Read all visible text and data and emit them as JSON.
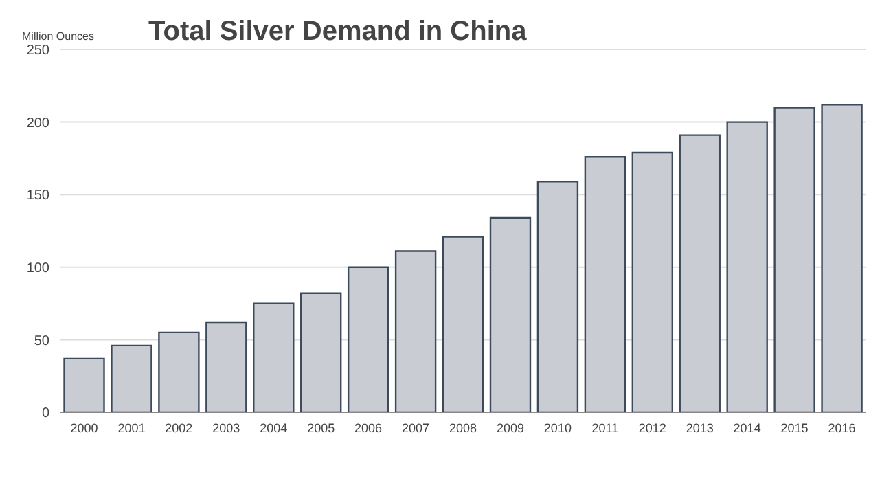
{
  "chart_data": {
    "type": "bar",
    "title": "Total Silver Demand in China",
    "ylabel": "Million Ounces",
    "categories": [
      "2000",
      "2001",
      "2002",
      "2003",
      "2004",
      "2005",
      "2006",
      "2007",
      "2008",
      "2009",
      "2010",
      "2011",
      "2012",
      "2013",
      "2014",
      "2015",
      "2016"
    ],
    "values": [
      37,
      46,
      55,
      62,
      75,
      82,
      100,
      111,
      121,
      134,
      159,
      176,
      179,
      191,
      200,
      210,
      212
    ],
    "color": "#c9ccd3",
    "ylim": [
      0,
      250
    ],
    "yticks": [
      0,
      50,
      100,
      150,
      200,
      250
    ],
    "grid": "y"
  }
}
